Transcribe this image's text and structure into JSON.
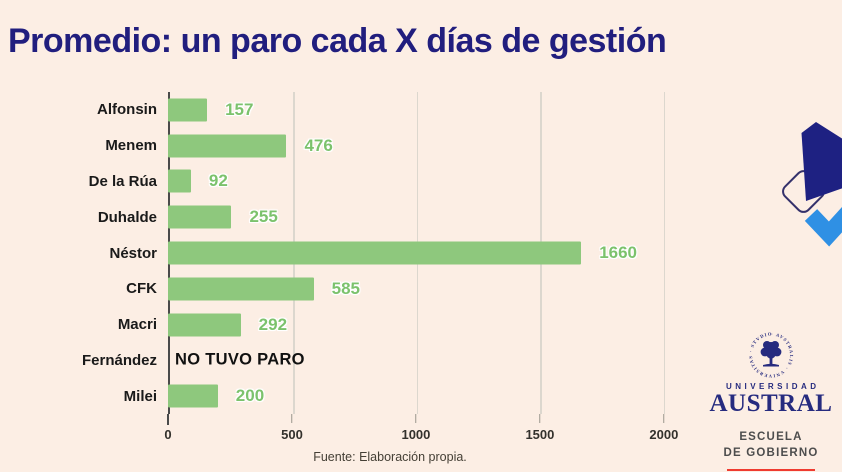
{
  "chart_data": {
    "type": "bar",
    "orientation": "horizontal",
    "title": "Promedio: un paro cada X días de gestión",
    "categories": [
      "Alfonsin",
      "Menem",
      "De la Rúa",
      "Duhalde",
      "Néstor",
      "CFK",
      "Macri",
      "Fernández",
      "Milei"
    ],
    "values": [
      157,
      476,
      92,
      255,
      1660,
      585,
      292,
      null,
      200
    ],
    "no_data_label": "NO TUVO PARO",
    "no_data_category": "Fernández",
    "x_ticks": [
      0,
      500,
      1000,
      1500,
      2000
    ],
    "xlim": [
      0,
      2065
    ],
    "grid": true,
    "legend": false,
    "bar_color": "#8EC87D",
    "value_label_color": "#7CC26C",
    "source": "Fuente: Elaboración propia."
  },
  "colors": {
    "background": "#FCEEE4",
    "title": "#211E7E",
    "axis": "#4A4A4A",
    "gridline": "#DCD7CE"
  },
  "logo": {
    "seal_ring_text": "· AVSTRALIS · VNIVERSITAS · STVDIORVM ·",
    "universidad": "UNIVERSIDAD",
    "austral": "AUSTRAL",
    "school_line1": "ESCUELA",
    "school_line2": "DE GOBIERNO",
    "navy": "#262B7F",
    "red": "#EF3B30"
  },
  "decoration": {
    "navy_shape": "#1E2182",
    "outline_shape": "#34316B",
    "check_shape": "#2F90E4"
  }
}
